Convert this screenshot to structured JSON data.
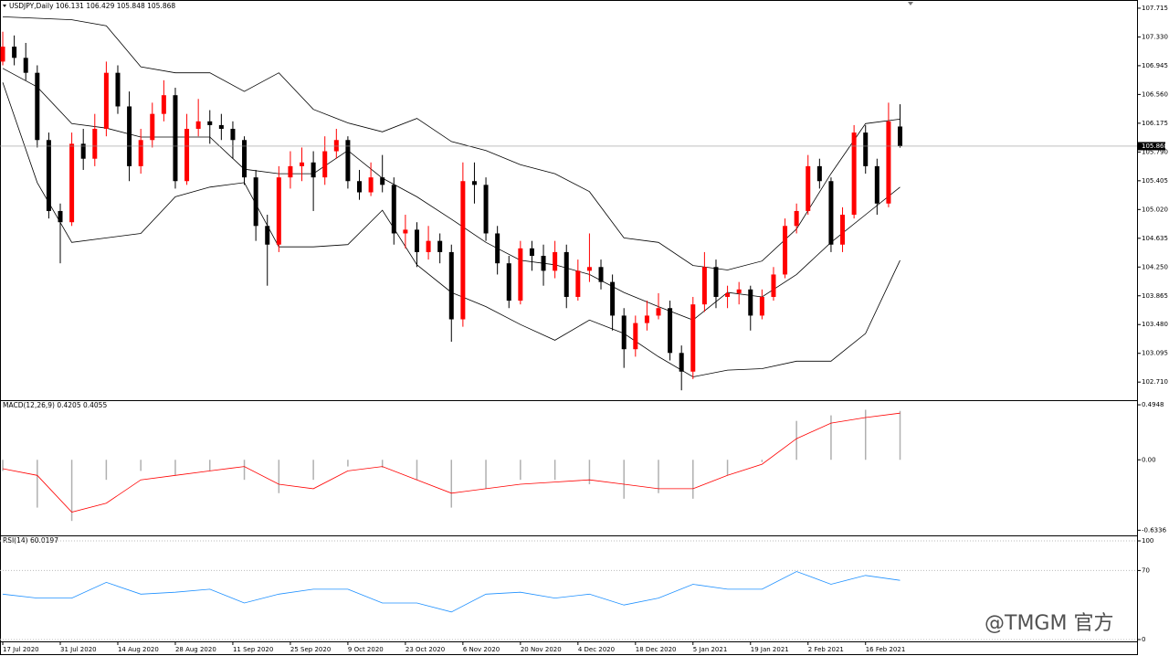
{
  "chart_data": [
    {
      "type": "candlestick",
      "title": "USDJPY,Daily 106.131 106.429 105.848 105.868",
      "up_color": "#ff0000",
      "down_color": "#000000",
      "xlim": [
        -0.24,
        98.6
      ],
      "ylim": [
        102.48,
        107.8
      ],
      "xticks": [
        {
          "value": 0,
          "label": "17 Jul 2020"
        },
        {
          "value": 5,
          "label": "31 Jul 2020"
        },
        {
          "value": 10,
          "label": "14 Aug 2020"
        },
        {
          "value": 15,
          "label": "28 Aug 2020"
        },
        {
          "value": 20,
          "label": "11 Sep 2020"
        },
        {
          "value": 25,
          "label": "25 Sep 2020"
        },
        {
          "value": 30,
          "label": "9 Oct 2020"
        },
        {
          "value": 35,
          "label": "23 Oct 2020"
        },
        {
          "value": 40,
          "label": "6 Nov 2020"
        },
        {
          "value": 45,
          "label": "20 Nov 2020"
        },
        {
          "value": 50,
          "label": "4 Dec 2020"
        },
        {
          "value": 55,
          "label": "18 Dec 2020"
        },
        {
          "value": 60,
          "label": "5 Jan 2021"
        },
        {
          "value": 65,
          "label": "19 Jan 2021"
        },
        {
          "value": 70,
          "label": "2 Feb 2021"
        },
        {
          "value": 75,
          "label": "16 Feb 2021"
        }
      ],
      "yticks": [
        107.715,
        {
          "value": 107.33,
          "label": "107.330"
        },
        106.945,
        {
          "value": 106.56,
          "label": "106.560"
        },
        106.175,
        {
          "value": 105.79,
          "label": "105.790"
        },
        105.405,
        {
          "value": 105.02,
          "label": "105.020"
        },
        104.635,
        {
          "value": 104.25,
          "label": "104.250"
        },
        103.865,
        {
          "value": 103.48,
          "label": "103.480"
        },
        103.095,
        {
          "value": 102.71,
          "label": "102.710"
        }
      ],
      "last_price": 105.868,
      "ohlc": [
        [
          107.0,
          107.4,
          106.95,
          107.2
        ],
        [
          107.2,
          107.35,
          106.95,
          107.05
        ],
        [
          107.05,
          107.25,
          106.75,
          106.85
        ],
        [
          106.85,
          106.95,
          105.85,
          105.95
        ],
        [
          105.95,
          106.05,
          104.9,
          105.0
        ],
        [
          105.0,
          105.1,
          104.3,
          104.85
        ],
        [
          104.85,
          106.05,
          104.8,
          105.9
        ],
        [
          105.9,
          106.1,
          105.55,
          105.7
        ],
        [
          105.7,
          106.3,
          105.6,
          106.1
        ],
        [
          106.1,
          107.0,
          106.0,
          106.85
        ],
        [
          106.85,
          106.95,
          106.3,
          106.4
        ],
        [
          106.4,
          106.6,
          105.4,
          105.6
        ],
        [
          105.6,
          106.1,
          105.5,
          105.95
        ],
        [
          105.95,
          106.45,
          105.85,
          106.3
        ],
        [
          106.3,
          106.75,
          106.2,
          106.55
        ],
        [
          106.55,
          106.65,
          105.3,
          105.4
        ],
        [
          105.4,
          106.3,
          105.35,
          106.1
        ],
        [
          106.1,
          106.5,
          106.0,
          106.2
        ],
        [
          106.2,
          106.35,
          105.9,
          106.15
        ],
        [
          106.15,
          106.3,
          105.95,
          106.1
        ],
        [
          106.1,
          106.2,
          105.7,
          105.95
        ],
        [
          105.95,
          106.0,
          105.35,
          105.45
        ],
        [
          105.45,
          105.55,
          104.6,
          104.8
        ],
        [
          104.8,
          104.95,
          104.0,
          104.55
        ],
        [
          104.55,
          105.6,
          104.45,
          105.45
        ],
        [
          105.45,
          105.8,
          105.3,
          105.6
        ],
        [
          105.6,
          105.85,
          105.4,
          105.65
        ],
        [
          105.65,
          105.8,
          105.0,
          105.45
        ],
        [
          105.45,
          106.0,
          105.35,
          105.8
        ],
        [
          105.8,
          106.1,
          105.7,
          105.95
        ],
        [
          105.95,
          106.0,
          105.3,
          105.4
        ],
        [
          105.4,
          105.55,
          105.15,
          105.25
        ],
        [
          105.25,
          105.65,
          105.2,
          105.45
        ],
        [
          105.45,
          105.75,
          105.25,
          105.35
        ],
        [
          105.35,
          105.45,
          104.55,
          104.7
        ],
        [
          104.7,
          104.95,
          104.5,
          104.75
        ],
        [
          104.75,
          104.85,
          104.25,
          104.45
        ],
        [
          104.45,
          104.8,
          104.35,
          104.6
        ],
        [
          104.6,
          104.7,
          104.3,
          104.45
        ],
        [
          104.45,
          104.55,
          103.25,
          103.55
        ],
        [
          103.55,
          105.65,
          103.45,
          105.4
        ],
        [
          105.4,
          105.65,
          105.1,
          105.35
        ],
        [
          105.35,
          105.45,
          104.6,
          104.7
        ],
        [
          104.7,
          104.8,
          104.15,
          104.3
        ],
        [
          104.3,
          104.4,
          103.7,
          103.8
        ],
        [
          103.8,
          104.6,
          103.75,
          104.5
        ],
        [
          104.5,
          104.6,
          104.2,
          104.4
        ],
        [
          104.4,
          104.55,
          104.0,
          104.2
        ],
        [
          104.2,
          104.6,
          104.1,
          104.45
        ],
        [
          104.45,
          104.55,
          103.7,
          103.85
        ],
        [
          103.85,
          104.35,
          103.8,
          104.2
        ],
        [
          104.2,
          104.7,
          104.05,
          104.25
        ],
        [
          104.25,
          104.35,
          103.95,
          104.05
        ],
        [
          104.05,
          104.15,
          103.4,
          103.6
        ],
        [
          103.6,
          103.7,
          102.9,
          103.15
        ],
        [
          103.15,
          103.6,
          103.05,
          103.5
        ],
        [
          103.5,
          103.8,
          103.4,
          103.6
        ],
        [
          103.6,
          103.9,
          103.55,
          103.7
        ],
        [
          103.7,
          103.8,
          103.0,
          103.1
        ],
        [
          103.1,
          103.2,
          102.6,
          102.85
        ],
        [
          102.85,
          103.85,
          102.75,
          103.75
        ],
        [
          103.75,
          104.45,
          103.65,
          104.25
        ],
        [
          104.25,
          104.35,
          103.7,
          103.85
        ],
        [
          103.85,
          104.0,
          103.7,
          103.9
        ],
        [
          103.9,
          104.05,
          103.75,
          103.95
        ],
        [
          103.95,
          104.0,
          103.4,
          103.6
        ],
        [
          103.6,
          103.95,
          103.55,
          103.85
        ],
        [
          103.85,
          104.25,
          103.8,
          104.15
        ],
        [
          104.15,
          104.9,
          104.1,
          104.8
        ],
        [
          104.8,
          105.1,
          104.7,
          105.0
        ],
        [
          105.0,
          105.75,
          104.95,
          105.6
        ],
        [
          105.6,
          105.7,
          105.3,
          105.4
        ],
        [
          105.4,
          105.45,
          104.45,
          104.55
        ],
        [
          104.55,
          105.05,
          104.45,
          104.95
        ],
        [
          104.95,
          106.15,
          104.9,
          106.05
        ],
        [
          106.05,
          106.15,
          105.5,
          105.6
        ],
        [
          105.6,
          105.7,
          104.95,
          105.1
        ],
        [
          105.1,
          106.45,
          105.05,
          106.2
        ],
        [
          106.131,
          106.429,
          105.848,
          105.868
        ]
      ],
      "band_x": [
        0,
        3,
        6,
        9,
        12,
        15,
        18,
        21,
        24,
        27,
        30,
        33,
        36,
        39,
        42,
        45,
        48,
        51,
        54,
        57,
        60,
        63,
        66,
        69,
        72,
        75,
        78
      ],
      "bands": [
        {
          "color": "#000000",
          "values": [
            107.6,
            107.58,
            107.56,
            107.48,
            106.93,
            106.85,
            106.85,
            106.6,
            106.85,
            106.36,
            106.18,
            106.06,
            106.24,
            105.93,
            105.81,
            105.62,
            105.5,
            105.26,
            104.64,
            104.58,
            104.27,
            104.21,
            104.33,
            104.76,
            105.5,
            106.17,
            106.23
          ]
        },
        {
          "color": "#000000",
          "values": [
            106.91,
            106.66,
            106.17,
            106.11,
            105.99,
            105.99,
            105.99,
            105.56,
            105.5,
            105.5,
            105.81,
            105.44,
            105.19,
            104.89,
            104.58,
            104.34,
            104.28,
            104.15,
            103.91,
            103.72,
            103.54,
            103.91,
            103.85,
            104.15,
            104.58,
            104.95,
            105.32
          ]
        },
        {
          "color": "#000000",
          "values": [
            106.72,
            105.38,
            104.58,
            104.64,
            104.7,
            105.19,
            105.32,
            105.38,
            104.52,
            104.52,
            104.55,
            105.01,
            104.28,
            103.91,
            103.72,
            103.48,
            103.27,
            103.54,
            103.36,
            103.05,
            102.78,
            102.87,
            102.89,
            102.99,
            102.99,
            103.36,
            104.34
          ]
        }
      ]
    },
    {
      "type": "macd",
      "title": "MACD(12,26,9) 0.4205 0.4055",
      "xlim": [
        -0.24,
        98.6
      ],
      "ylim": [
        -0.68,
        0.52
      ],
      "yticks": [
        0.4948,
        {
          "value": 0,
          "label": "0.00"
        },
        -0.6336
      ],
      "x": [
        0,
        3,
        6,
        9,
        12,
        15,
        18,
        21,
        24,
        27,
        30,
        33,
        36,
        39,
        42,
        45,
        48,
        51,
        54,
        57,
        60,
        63,
        66,
        69,
        72,
        75,
        78
      ],
      "series": [
        {
          "type": "bar",
          "color": "#b0b0b0",
          "values": [
            -0.1,
            -0.43,
            -0.55,
            -0.18,
            -0.1,
            -0.14,
            -0.1,
            -0.18,
            -0.3,
            -0.18,
            -0.06,
            -0.07,
            -0.18,
            -0.43,
            -0.26,
            -0.18,
            -0.18,
            -0.22,
            -0.35,
            -0.3,
            -0.35,
            -0.14,
            -0.02,
            0.35,
            0.4,
            0.45,
            0.44
          ]
        },
        {
          "type": "line",
          "color": "#ff0000",
          "values": [
            -0.08,
            -0.14,
            -0.47,
            -0.39,
            -0.18,
            -0.14,
            -0.1,
            -0.06,
            -0.22,
            -0.26,
            -0.1,
            -0.06,
            -0.18,
            -0.3,
            -0.26,
            -0.22,
            -0.2,
            -0.18,
            -0.22,
            -0.26,
            -0.26,
            -0.14,
            -0.04,
            0.19,
            0.33,
            0.38,
            0.42
          ]
        }
      ]
    },
    {
      "type": "line",
      "title": "RSI(14) 60.0197",
      "xlim": [
        -0.24,
        98.6
      ],
      "ylim": [
        0,
        100
      ],
      "yticks": [
        100,
        70,
        0
      ],
      "x": [
        0,
        3,
        6,
        9,
        12,
        15,
        18,
        21,
        24,
        27,
        30,
        33,
        36,
        39,
        42,
        45,
        48,
        51,
        54,
        57,
        60,
        63,
        66,
        69,
        72,
        75,
        78
      ],
      "series": [
        {
          "type": "line",
          "color": "#1e90ff",
          "values": [
            46,
            42,
            42,
            58,
            46,
            48,
            51,
            37,
            46,
            51,
            51,
            37,
            37,
            28,
            46,
            48,
            42,
            46,
            35,
            42,
            56,
            51,
            51,
            69,
            56,
            65,
            60
          ]
        }
      ]
    },
    {
      "type": "watermark",
      "title": "@TMGM 官方"
    }
  ]
}
